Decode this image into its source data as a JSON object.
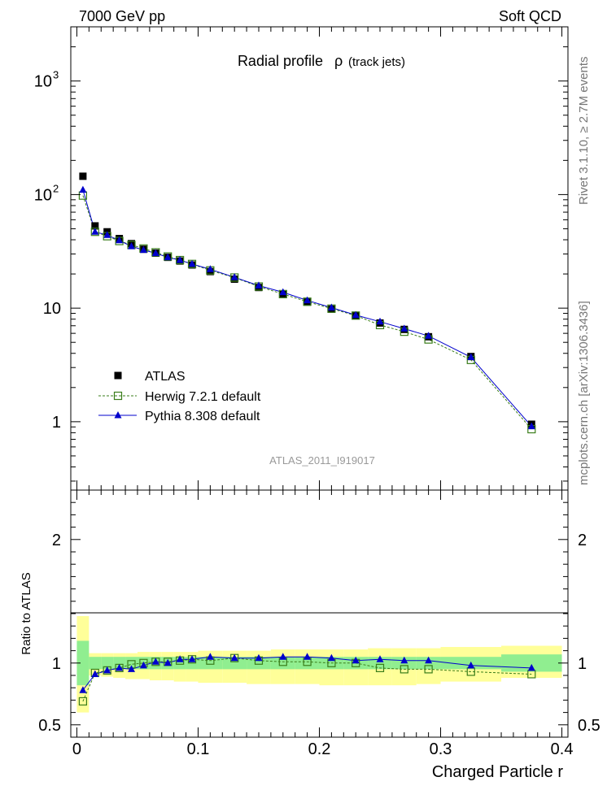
{
  "header": {
    "left": "7000 GeV pp",
    "right": "Soft QCD"
  },
  "side_labels": {
    "rivet": "Rivet 3.1.10, ≥ 2.7M events",
    "mcplots": "mcplots.cern.ch [arXiv:1306.3436]"
  },
  "chart_data": [
    {
      "type": "scatter",
      "panel": "main",
      "title": "Radial profile",
      "title_symbol": "ρ",
      "title_suffix": "(track jets)",
      "watermark": "ATLAS_2011_I919017",
      "yscale": "log",
      "ylim": [
        0.25,
        3000
      ],
      "xlim": [
        -0.005,
        0.405
      ],
      "y_ticks": [
        {
          "value": 1000,
          "label": "10",
          "exp": "3"
        },
        {
          "value": 100,
          "label": "10",
          "exp": "2"
        },
        {
          "value": 10,
          "label": "10",
          "exp": ""
        },
        {
          "value": 1,
          "label": "1",
          "exp": ""
        }
      ],
      "legend_position": "lower-left",
      "series": [
        {
          "name": "ATLAS",
          "marker": "filled-square",
          "color": "#000000",
          "x": [
            0.005,
            0.015,
            0.025,
            0.035,
            0.045,
            0.055,
            0.065,
            0.075,
            0.085,
            0.095,
            0.11,
            0.13,
            0.15,
            0.17,
            0.19,
            0.21,
            0.23,
            0.25,
            0.27,
            0.29,
            0.325,
            0.375
          ],
          "y": [
            145,
            53,
            47,
            41,
            37,
            33,
            30.5,
            28,
            26,
            24,
            21,
            18,
            15.2,
            13.2,
            11.3,
            9.8,
            8.6,
            7.4,
            6.5,
            5.6,
            3.75,
            0.95
          ]
        },
        {
          "name": "Herwig 7.2.1 default",
          "marker": "open-square",
          "line": "dashed",
          "color": "#3a7d1a",
          "x": [
            0.005,
            0.015,
            0.025,
            0.035,
            0.045,
            0.055,
            0.065,
            0.075,
            0.085,
            0.095,
            0.11,
            0.13,
            0.15,
            0.17,
            0.19,
            0.21,
            0.23,
            0.25,
            0.27,
            0.29,
            0.325,
            0.375
          ],
          "y": [
            98,
            47,
            43,
            39,
            36,
            33.5,
            31,
            28.5,
            26.5,
            24.5,
            21.5,
            18.6,
            15.5,
            13.3,
            11.4,
            9.9,
            8.6,
            7.1,
            6.2,
            5.3,
            3.5,
            0.86
          ]
        },
        {
          "name": "Pythia 8.308 default",
          "marker": "filled-triangle",
          "line": "solid",
          "color": "#0000cc",
          "x": [
            0.005,
            0.015,
            0.025,
            0.035,
            0.045,
            0.055,
            0.065,
            0.075,
            0.085,
            0.095,
            0.11,
            0.13,
            0.15,
            0.17,
            0.19,
            0.21,
            0.23,
            0.25,
            0.27,
            0.29,
            0.325,
            0.375
          ],
          "y": [
            110,
            47,
            44,
            39.5,
            35,
            32.5,
            30.5,
            28,
            26.5,
            24.5,
            22,
            18.7,
            15.8,
            13.8,
            11.7,
            10.1,
            8.7,
            7.6,
            6.6,
            5.7,
            3.7,
            0.91
          ]
        }
      ]
    },
    {
      "type": "scatter",
      "panel": "ratio",
      "ylabel": "Ratio to ATLAS",
      "xlabel": "Charged Particle r",
      "ylim": [
        0.4,
        2.4
      ],
      "xlim": [
        -0.005,
        0.405
      ],
      "y_ticks": [
        {
          "value": 0.5,
          "label": "0.5"
        },
        {
          "value": 1,
          "label": "1"
        },
        {
          "value": 2,
          "label": "2"
        }
      ],
      "x_ticks": [
        {
          "value": 0,
          "label": "0"
        },
        {
          "value": 0.1,
          "label": "0.1"
        },
        {
          "value": 0.2,
          "label": "0.2"
        },
        {
          "value": 0.3,
          "label": "0.3"
        },
        {
          "value": 0.4,
          "label": "0.4"
        }
      ],
      "bands": {
        "edges": [
          0.0,
          0.01,
          0.02,
          0.03,
          0.04,
          0.05,
          0.06,
          0.07,
          0.08,
          0.09,
          0.1,
          0.12,
          0.14,
          0.16,
          0.18,
          0.2,
          0.22,
          0.24,
          0.26,
          0.28,
          0.3,
          0.35,
          0.4
        ],
        "stat": [
          [
            0.82,
            1.18
          ],
          [
            0.95,
            1.05
          ],
          [
            0.95,
            1.05
          ],
          [
            0.95,
            1.05
          ],
          [
            0.95,
            1.05
          ],
          [
            0.95,
            1.05
          ],
          [
            0.95,
            1.05
          ],
          [
            0.95,
            1.05
          ],
          [
            0.95,
            1.05
          ],
          [
            0.95,
            1.05
          ],
          [
            0.95,
            1.05
          ],
          [
            0.95,
            1.05
          ],
          [
            0.95,
            1.05
          ],
          [
            0.95,
            1.05
          ],
          [
            0.95,
            1.05
          ],
          [
            0.95,
            1.05
          ],
          [
            0.95,
            1.05
          ],
          [
            0.95,
            1.05
          ],
          [
            0.95,
            1.05
          ],
          [
            0.95,
            1.05
          ],
          [
            0.95,
            1.05
          ],
          [
            0.93,
            1.07
          ]
        ],
        "total": [
          [
            0.6,
            1.38
          ],
          [
            0.9,
            1.08
          ],
          [
            0.89,
            1.08
          ],
          [
            0.88,
            1.08
          ],
          [
            0.87,
            1.08
          ],
          [
            0.87,
            1.09
          ],
          [
            0.86,
            1.09
          ],
          [
            0.86,
            1.09
          ],
          [
            0.85,
            1.09
          ],
          [
            0.85,
            1.09
          ],
          [
            0.84,
            1.1
          ],
          [
            0.84,
            1.1
          ],
          [
            0.83,
            1.1
          ],
          [
            0.83,
            1.11
          ],
          [
            0.83,
            1.11
          ],
          [
            0.82,
            1.11
          ],
          [
            0.82,
            1.11
          ],
          [
            0.82,
            1.12
          ],
          [
            0.82,
            1.12
          ],
          [
            0.83,
            1.12
          ],
          [
            0.85,
            1.13
          ],
          [
            0.88,
            1.14
          ]
        ],
        "stat_color": "#90ee90",
        "total_color": "#ffff99"
      },
      "series": [
        {
          "name": "Herwig 7.2.1 default",
          "color": "#3a7d1a",
          "x": [
            0.005,
            0.015,
            0.025,
            0.035,
            0.045,
            0.055,
            0.065,
            0.075,
            0.085,
            0.095,
            0.11,
            0.13,
            0.15,
            0.17,
            0.19,
            0.21,
            0.23,
            0.25,
            0.27,
            0.29,
            0.325,
            0.375
          ],
          "y": [
            0.69,
            0.92,
            0.94,
            0.96,
            0.99,
            1.0,
            1.01,
            1.01,
            1.02,
            1.03,
            1.02,
            1.04,
            1.02,
            1.01,
            1.01,
            1.0,
            1.0,
            0.96,
            0.95,
            0.95,
            0.93,
            0.91
          ]
        },
        {
          "name": "Pythia 8.308 default",
          "color": "#0000cc",
          "x": [
            0.005,
            0.015,
            0.025,
            0.035,
            0.045,
            0.055,
            0.065,
            0.075,
            0.085,
            0.095,
            0.11,
            0.13,
            0.15,
            0.17,
            0.19,
            0.21,
            0.23,
            0.25,
            0.27,
            0.29,
            0.325,
            0.375
          ],
          "y": [
            0.78,
            0.91,
            0.94,
            0.96,
            0.95,
            0.98,
            1.01,
            1.0,
            1.03,
            1.03,
            1.05,
            1.04,
            1.04,
            1.05,
            1.05,
            1.04,
            1.02,
            1.03,
            1.02,
            1.02,
            0.98,
            0.96
          ]
        }
      ]
    }
  ]
}
